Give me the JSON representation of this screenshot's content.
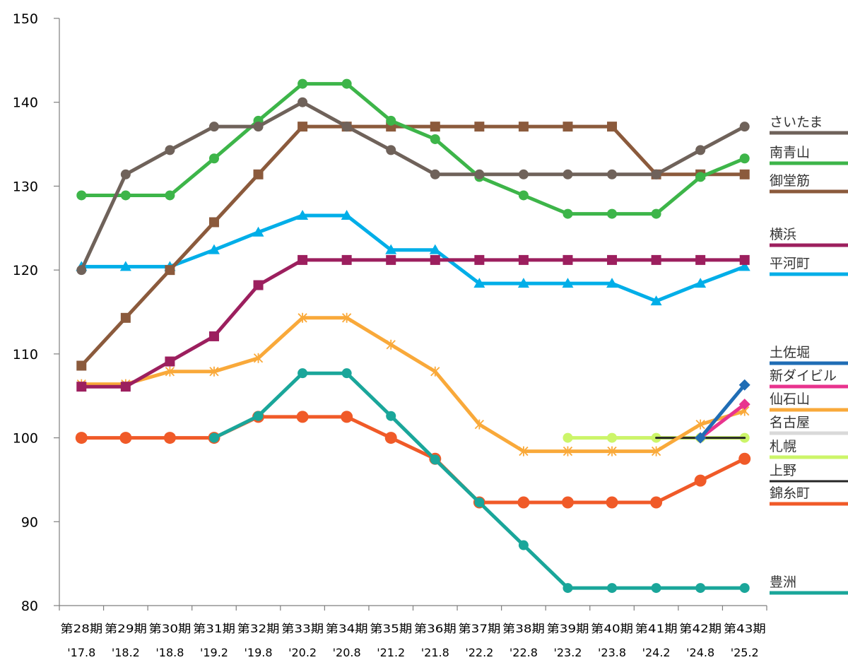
{
  "chart_data": {
    "type": "line",
    "ylim": [
      80,
      150
    ],
    "yticks": [
      80,
      90,
      100,
      110,
      120,
      130,
      140,
      150
    ],
    "categories": [
      "第28期",
      "第29期",
      "第30期",
      "第31期",
      "第32期",
      "第33期",
      "第34期",
      "第35期",
      "第36期",
      "第37期",
      "第38期",
      "第39期",
      "第40期",
      "第41期",
      "第42期",
      "第43期"
    ],
    "dates": [
      "'17.8",
      "'18.2",
      "'18.8",
      "'19.2",
      "'19.8",
      "'20.2",
      "'20.8",
      "'21.2",
      "'21.8",
      "'22.2",
      "'22.8",
      "'23.2",
      "'23.8",
      "'24.2",
      "'24.8",
      "'25.2"
    ],
    "grid": false,
    "legend_position": "right",
    "series": [
      {
        "name": "さいたま",
        "color": "#6f625a",
        "marker": "circle",
        "values": [
          120,
          131.4,
          134.3,
          137.1,
          137.1,
          140,
          137.1,
          134.3,
          131.4,
          131.4,
          131.4,
          131.4,
          131.4,
          131.4,
          134.3,
          137.1
        ]
      },
      {
        "name": "南青山",
        "color": "#3db549",
        "marker": "circle",
        "values": [
          128.9,
          128.9,
          128.9,
          133.3,
          137.8,
          142.2,
          142.2,
          137.8,
          135.6,
          131.1,
          128.9,
          126.7,
          126.7,
          126.7,
          131.1,
          133.3
        ]
      },
      {
        "name": "御堂筋",
        "color": "#8b5a3c",
        "marker": "square",
        "values": [
          108.6,
          114.3,
          120,
          125.7,
          131.4,
          137.1,
          137.1,
          137.1,
          137.1,
          137.1,
          137.1,
          137.1,
          137.1,
          131.4,
          131.4,
          131.4
        ]
      },
      {
        "name": "横浜",
        "color": "#9c1f5e",
        "marker": "square",
        "values": [
          106.1,
          106.1,
          109.1,
          112.1,
          118.2,
          121.2,
          121.2,
          121.2,
          121.2,
          121.2,
          121.2,
          121.2,
          121.2,
          121.2,
          121.2,
          121.2
        ]
      },
      {
        "name": "平河町",
        "color": "#00aee8",
        "marker": "triangle",
        "values": [
          120.4,
          120.4,
          120.4,
          122.4,
          124.5,
          126.5,
          126.5,
          122.4,
          122.4,
          118.4,
          118.4,
          118.4,
          118.4,
          116.3,
          118.4,
          120.4
        ]
      },
      {
        "name": "土佐堀",
        "color": "#1f6db5",
        "marker": "diamond",
        "values": [
          null,
          null,
          null,
          null,
          null,
          null,
          null,
          null,
          null,
          null,
          null,
          null,
          null,
          null,
          100,
          106.3
        ]
      },
      {
        "name": "新ダイビル",
        "color": "#e8338e",
        "marker": "diamond",
        "values": [
          null,
          null,
          null,
          null,
          null,
          null,
          null,
          null,
          null,
          null,
          null,
          null,
          null,
          null,
          100,
          104
        ]
      },
      {
        "name": "仙石山",
        "color": "#f9a93a",
        "marker": "asterisk",
        "values": [
          106.4,
          106.4,
          107.9,
          107.9,
          109.5,
          114.3,
          114.3,
          111.1,
          107.9,
          101.6,
          98.4,
          98.4,
          98.4,
          98.4,
          101.6,
          103.2
        ]
      },
      {
        "name": "名古屋",
        "color": "#d9d9d9",
        "marker": "circle-small",
        "values": [
          null,
          null,
          null,
          null,
          null,
          null,
          null,
          null,
          null,
          null,
          null,
          null,
          100,
          100,
          100,
          100
        ]
      },
      {
        "name": "札幌",
        "color": "#ccf569",
        "marker": "circle",
        "values": [
          null,
          null,
          null,
          null,
          null,
          null,
          null,
          null,
          null,
          null,
          null,
          100,
          100,
          100,
          100,
          100
        ]
      },
      {
        "name": "上野",
        "color": "#262626",
        "marker": "none",
        "values": [
          null,
          null,
          null,
          null,
          null,
          null,
          null,
          null,
          null,
          null,
          null,
          null,
          null,
          100,
          100,
          100
        ]
      },
      {
        "name": "錦糸町",
        "color": "#f05a28",
        "marker": "circle-large",
        "values": [
          100,
          100,
          100,
          100,
          102.5,
          102.5,
          102.5,
          100,
          97.5,
          92.3,
          92.3,
          92.3,
          92.3,
          92.3,
          94.9,
          97.5
        ]
      },
      {
        "name": "豊洲",
        "color": "#1aa69a",
        "marker": "circle",
        "values": [
          null,
          null,
          null,
          100,
          102.6,
          107.7,
          107.7,
          102.6,
          97.4,
          92.3,
          87.2,
          82.1,
          82.1,
          82.1,
          82.1,
          82.1
        ]
      }
    ],
    "title": "",
    "xlabel": "",
    "ylabel": ""
  }
}
